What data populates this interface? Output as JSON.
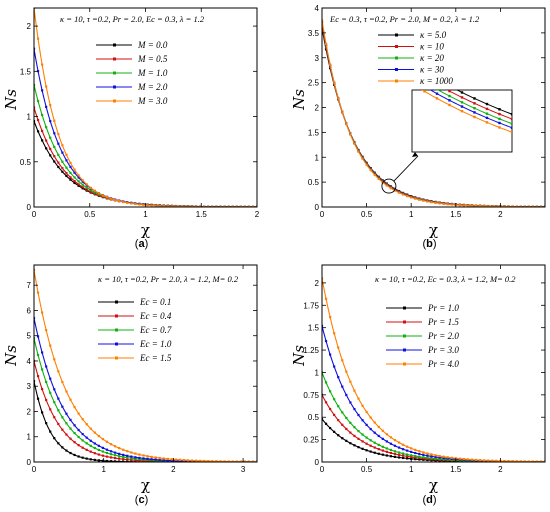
{
  "chart_data": [
    {
      "type": "line",
      "panel": "a",
      "annotation": "κ = 10, τ =0.2, Pr = 2.0, Ec = 0.3, λ = 1.2",
      "xlabel": "χ",
      "ylabel": "Ns",
      "xlim": [
        0,
        2
      ],
      "ylim": [
        0,
        2.2
      ],
      "xticks": [
        "0",
        "0.5",
        "1",
        "1.5",
        "2"
      ],
      "yticks": [
        "0",
        "0.5",
        "1",
        "1.5",
        "2"
      ],
      "legend_position": "top-right",
      "grid": false,
      "series": [
        {
          "name": "M = 0.0",
          "color": "#000000",
          "y0": 0.95,
          "decay": 3.5,
          "points": [
            [
              0,
              0.95
            ],
            [
              0.5,
              0.17
            ],
            [
              1,
              0.03
            ],
            [
              1.5,
              0.005
            ],
            [
              2,
              0.001
            ]
          ]
        },
        {
          "name": "M = 0.5",
          "color": "#d01010",
          "y0": 1.1,
          "decay": 3.7,
          "points": [
            [
              0,
              1.1
            ],
            [
              0.5,
              0.17
            ],
            [
              1,
              0.027
            ],
            [
              1.5,
              0.004
            ],
            [
              2,
              0.001
            ]
          ]
        },
        {
          "name": "M = 1.0",
          "color": "#10b010",
          "y0": 1.35,
          "decay": 3.9,
          "points": [
            [
              0,
              1.35
            ],
            [
              0.5,
              0.19
            ],
            [
              1,
              0.027
            ],
            [
              1.5,
              0.004
            ],
            [
              2,
              0.001
            ]
          ]
        },
        {
          "name": "M = 2.0",
          "color": "#1010e0",
          "y0": 1.75,
          "decay": 4.2,
          "points": [
            [
              0,
              1.75
            ],
            [
              0.5,
              0.21
            ],
            [
              1,
              0.026
            ],
            [
              1.5,
              0.003
            ],
            [
              2,
              0.0004
            ]
          ]
        },
        {
          "name": "M = 3.0",
          "color": "#ff7f00",
          "y0": 2.2,
          "decay": 4.6,
          "points": [
            [
              0,
              2.2
            ],
            [
              0.5,
              0.22
            ],
            [
              1,
              0.022
            ],
            [
              1.5,
              0.002
            ],
            [
              2,
              0.0002
            ]
          ]
        }
      ]
    },
    {
      "type": "line",
      "panel": "b",
      "annotation": "Ec = 0.3, τ =0.2, Pr = 2.0, M = 0.2, λ = 1.2",
      "xlabel": "χ",
      "ylabel": "Ns",
      "xlim": [
        0,
        2.5
      ],
      "ylim": [
        0,
        4
      ],
      "xticks": [
        "0",
        "0.5",
        "1",
        "1.5",
        "2"
      ],
      "yticks": [
        "0",
        "0.5",
        "1",
        "1.5",
        "2",
        "2.5",
        "3",
        "3.5",
        "4"
      ],
      "legend_position": "top-right",
      "grid": false,
      "inset": "zoom near χ ≈ 0.75",
      "series": [
        {
          "name": "κ = 5.0",
          "color": "#000000",
          "y0": 3.6,
          "decay": 2.8,
          "points": [
            [
              0,
              3.6
            ],
            [
              0.5,
              0.89
            ],
            [
              1,
              0.22
            ],
            [
              1.5,
              0.054
            ],
            [
              2,
              0.013
            ]
          ]
        },
        {
          "name": "κ = 10",
          "color": "#d01010",
          "y0": 3.65,
          "decay": 2.85,
          "points": [
            [
              0,
              3.65
            ],
            [
              0.5,
              0.88
            ],
            [
              1,
              0.21
            ],
            [
              1.5,
              0.051
            ],
            [
              2,
              0.012
            ]
          ]
        },
        {
          "name": "κ = 20",
          "color": "#10b010",
          "y0": 3.7,
          "decay": 2.9,
          "points": [
            [
              0,
              3.7
            ],
            [
              0.5,
              0.87
            ],
            [
              1,
              0.2
            ],
            [
              1.5,
              0.048
            ],
            [
              2,
              0.011
            ]
          ]
        },
        {
          "name": "κ = 30",
          "color": "#1010e0",
          "y0": 3.72,
          "decay": 2.93,
          "points": [
            [
              0,
              3.72
            ],
            [
              0.5,
              0.86
            ],
            [
              1,
              0.2
            ],
            [
              1.5,
              0.046
            ],
            [
              2,
              0.011
            ]
          ]
        },
        {
          "name": "κ = 1000",
          "color": "#ff7f00",
          "y0": 3.75,
          "decay": 2.97,
          "points": [
            [
              0,
              3.75
            ],
            [
              0.5,
              0.85
            ],
            [
              1,
              0.19
            ],
            [
              1.5,
              0.043
            ],
            [
              2,
              0.01
            ]
          ]
        }
      ]
    },
    {
      "type": "line",
      "panel": "c",
      "annotation": "κ = 10, τ =0.2, Pr = 2.0, λ = 1.2, M= 0.2",
      "xlabel": "χ",
      "ylabel": "Ns",
      "xlim": [
        0,
        3.2
      ],
      "ylim": [
        0,
        7.8
      ],
      "xticks": [
        "0",
        "1",
        "2",
        "3"
      ],
      "yticks": [
        "0",
        "1",
        "2",
        "3",
        "4",
        "5",
        "6",
        "7"
      ],
      "legend_position": "top-right",
      "grid": false,
      "series": [
        {
          "name": "Ec = 0.1",
          "color": "#000000",
          "y0": 3.2,
          "decay": 4.2,
          "points": [
            [
              0,
              3.2
            ],
            [
              0.5,
              0.39
            ],
            [
              1,
              0.048
            ],
            [
              2,
              0.001
            ],
            [
              3,
              0
            ]
          ]
        },
        {
          "name": "Ec = 0.4",
          "color": "#d01010",
          "y0": 4.0,
          "decay": 2.8,
          "points": [
            [
              0,
              4.0
            ],
            [
              0.5,
              0.99
            ],
            [
              1,
              0.24
            ],
            [
              2,
              0.015
            ],
            [
              3,
              0.001
            ]
          ]
        },
        {
          "name": "Ec = 0.7",
          "color": "#10b010",
          "y0": 4.9,
          "decay": 2.5,
          "points": [
            [
              0,
              4.9
            ],
            [
              0.5,
              1.4
            ],
            [
              1,
              0.4
            ],
            [
              2,
              0.033
            ],
            [
              3,
              0.003
            ]
          ]
        },
        {
          "name": "Ec = 1.0",
          "color": "#1010e0",
          "y0": 5.7,
          "decay": 2.35,
          "points": [
            [
              0,
              5.7
            ],
            [
              0.5,
              1.76
            ],
            [
              1,
              0.54
            ],
            [
              2,
              0.052
            ],
            [
              3,
              0.005
            ]
          ]
        },
        {
          "name": "Ec = 1.5",
          "color": "#ff7f00",
          "y0": 7.6,
          "decay": 2.15,
          "points": [
            [
              0,
              7.6
            ],
            [
              0.5,
              2.59
            ],
            [
              1,
              0.88
            ],
            [
              2,
              0.103
            ],
            [
              3,
              0.012
            ]
          ]
        }
      ]
    },
    {
      "type": "line",
      "panel": "d",
      "annotation": "κ = 10, τ =0.2, Ec = 0.3, λ = 1.2, M= 0.2",
      "xlabel": "χ",
      "ylabel": "Ns",
      "xlim": [
        0,
        2.5
      ],
      "ylim": [
        0,
        2.2
      ],
      "xticks": [
        "0",
        "0.5",
        "1",
        "1.5",
        "2"
      ],
      "yticks": [
        "0",
        "0.25",
        "0.5",
        "0.75",
        "1",
        "1.25",
        "1.5",
        "1.75",
        "2"
      ],
      "legend_position": "top-right",
      "grid": false,
      "series": [
        {
          "name": "Pr = 1.0",
          "color": "#000000",
          "y0": 0.48,
          "decay": 2.6,
          "points": [
            [
              0,
              0.48
            ],
            [
              0.5,
              0.13
            ],
            [
              1,
              0.036
            ],
            [
              1.5,
              0.01
            ],
            [
              2,
              0.003
            ]
          ]
        },
        {
          "name": "Pr = 1.5",
          "color": "#d01010",
          "y0": 0.75,
          "decay": 2.6,
          "points": [
            [
              0,
              0.75
            ],
            [
              0.5,
              0.2
            ],
            [
              1,
              0.056
            ],
            [
              1.5,
              0.015
            ],
            [
              2,
              0.004
            ]
          ]
        },
        {
          "name": "Pr = 2.0",
          "color": "#10b010",
          "y0": 1.0,
          "decay": 2.6,
          "points": [
            [
              0,
              1.0
            ],
            [
              0.5,
              0.27
            ],
            [
              1,
              0.074
            ],
            [
              1.5,
              0.02
            ],
            [
              2,
              0.006
            ]
          ]
        },
        {
          "name": "Pr = 3.0",
          "color": "#1010e0",
          "y0": 1.52,
          "decay": 2.6,
          "points": [
            [
              0,
              1.52
            ],
            [
              0.5,
              0.41
            ],
            [
              1,
              0.11
            ],
            [
              1.5,
              0.031
            ],
            [
              2,
              0.008
            ]
          ]
        },
        {
          "name": "Pr = 4.0",
          "color": "#ff7f00",
          "y0": 2.05,
          "decay": 2.6,
          "points": [
            [
              0,
              2.05
            ],
            [
              0.5,
              0.56
            ],
            [
              1,
              0.152
            ],
            [
              1.5,
              0.041
            ],
            [
              2,
              0.011
            ]
          ]
        }
      ]
    }
  ],
  "captions": [
    "(a)",
    "(b)",
    "(c)",
    "(d)"
  ]
}
